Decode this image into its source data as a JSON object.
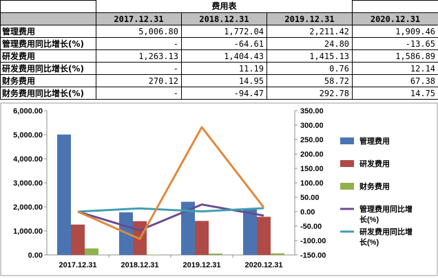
{
  "table": {
    "title": "费用表",
    "columns": [
      "2017.12.31",
      "2018.12.31",
      "2019.12.31",
      "2020.12.31"
    ],
    "rows": [
      {
        "label": "管理费用",
        "values": [
          "5,006.80",
          "1,772.04",
          "2,211.42",
          "1,909.46"
        ]
      },
      {
        "label": "管理费用同比增长(%)",
        "values": [
          "-",
          "-64.61",
          "24.80",
          "-13.65"
        ]
      },
      {
        "label": "研发费用",
        "values": [
          "1,263.13",
          "1,404.43",
          "1,415.13",
          "1,586.89"
        ]
      },
      {
        "label": "研发费用同比增长(%)",
        "values": [
          "-",
          "11.19",
          "0.76",
          "12.14"
        ]
      },
      {
        "label": "财务费用",
        "values": [
          "270.12",
          "14.95",
          "58.72",
          "67.38"
        ]
      },
      {
        "label": "财务费用同比增长(%)",
        "values": [
          "-",
          "-94.47",
          "292.78",
          "14.75"
        ]
      }
    ]
  },
  "chart_data": {
    "type": "bar",
    "categories": [
      "2017.12.31",
      "2018.12.31",
      "2019.12.31",
      "2020.12.31"
    ],
    "series": [
      {
        "name": "管理费用",
        "type": "bar",
        "axis": "left",
        "color": "#4a74b1",
        "values": [
          5006.8,
          1772.04,
          2211.42,
          1909.46
        ]
      },
      {
        "name": "研发费用",
        "type": "bar",
        "axis": "left",
        "color": "#b04a46",
        "values": [
          1263.13,
          1404.43,
          1415.13,
          1586.89
        ]
      },
      {
        "name": "财务费用",
        "type": "bar",
        "axis": "left",
        "color": "#8fb04c",
        "values": [
          270.12,
          14.95,
          58.72,
          67.38
        ]
      },
      {
        "name": "管理费用同比增长(%)",
        "type": "line",
        "axis": "right",
        "color": "#6a4a92",
        "values": [
          0,
          -64.61,
          24.8,
          -13.65
        ]
      },
      {
        "name": "研发费用同比增长(%)",
        "type": "line",
        "axis": "right",
        "color": "#3f9eb0",
        "values": [
          0,
          11.19,
          0.76,
          12.14
        ]
      },
      {
        "name": "财务费用同比增长(%)",
        "type": "line",
        "axis": "right",
        "color": "#e0883a",
        "values": [
          0,
          -94.47,
          292.78,
          14.75
        ]
      }
    ],
    "left_axis": {
      "min": 0,
      "max": 6000,
      "step": 1000,
      "tick_labels": [
        "0.00",
        "1,000.00",
        "2,000.00",
        "3,000.00",
        "4,000.00",
        "5,000.00",
        "6,000.00"
      ]
    },
    "right_axis": {
      "min": -150,
      "max": 350,
      "step": 50,
      "tick_labels": [
        "-150.00",
        "-100.00",
        "-50.00",
        "0.00",
        "50.00",
        "100.00",
        "150.00",
        "200.00",
        "250.00",
        "300.00",
        "350.00"
      ]
    },
    "legend": {
      "position": "right",
      "entries": [
        {
          "lines": [
            "管理费用"
          ],
          "kind": "bar",
          "color": "#4a74b1"
        },
        {
          "lines": [
            "研发费用"
          ],
          "kind": "bar",
          "color": "#b04a46"
        },
        {
          "lines": [
            "财务费用"
          ],
          "kind": "bar",
          "color": "#8fb04c"
        },
        {
          "lines": [
            "管理费用同比增",
            "长(%)"
          ],
          "kind": "line",
          "color": "#6a4a92"
        },
        {
          "lines": [
            "研发费用同比增",
            "长(%)"
          ],
          "kind": "line",
          "color": "#3f9eb0"
        }
      ]
    },
    "grid": false
  }
}
